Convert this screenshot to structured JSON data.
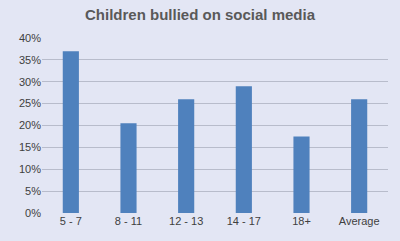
{
  "chart_data": {
    "type": "bar",
    "title": "Children bullied on social media",
    "categories": [
      "5 - 7",
      "8 - 11",
      "12 - 13",
      "14 - 17",
      "18+",
      "Average"
    ],
    "values": [
      37,
      20.5,
      26,
      29,
      17.5,
      26
    ],
    "color": "#4f81bd",
    "ylim": [
      0,
      40
    ],
    "yticks": [
      {
        "value": 0,
        "label": "0%"
      },
      {
        "value": 5,
        "label": "5%"
      },
      {
        "value": 10,
        "label": "10%"
      },
      {
        "value": 15,
        "label": "15%"
      },
      {
        "value": 20,
        "label": "20%"
      },
      {
        "value": 25,
        "label": "25%"
      },
      {
        "value": 30,
        "label": "30%"
      },
      {
        "value": 35,
        "label": "35%"
      },
      {
        "value": 40,
        "label": "40%"
      }
    ],
    "grid": true
  }
}
